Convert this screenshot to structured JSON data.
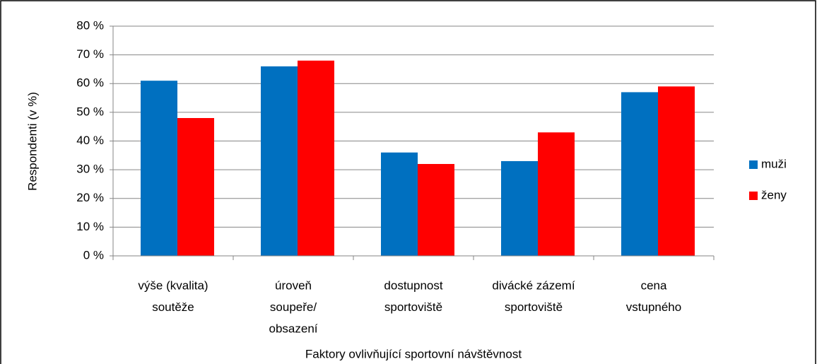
{
  "chart_data": {
    "type": "bar",
    "x_label": "Faktory ovlivňující sportovní návštěvnost",
    "y_label": "Respondenti (v %)",
    "categories": [
      [
        "výše (kvalita)",
        "soutěže"
      ],
      [
        "úroveň",
        "soupeře/",
        "obsazení"
      ],
      [
        "dostupnost",
        "sportoviště"
      ],
      [
        "divácké zázemí",
        "sportoviště"
      ],
      [
        "cena",
        "vstupného"
      ]
    ],
    "series": [
      {
        "name": "muži",
        "color": "#0070c0",
        "values": [
          61,
          66,
          36,
          33,
          57
        ]
      },
      {
        "name": "ženy",
        "color": "#ff0000",
        "values": [
          48,
          68,
          32,
          43,
          59
        ]
      }
    ],
    "ylim": [
      0,
      80
    ],
    "yticks": [
      {
        "value": 0,
        "label": "0 %"
      },
      {
        "value": 10,
        "label": "10 %"
      },
      {
        "value": 20,
        "label": "20 %"
      },
      {
        "value": 30,
        "label": "30 %"
      },
      {
        "value": 40,
        "label": "40 %"
      },
      {
        "value": 50,
        "label": "50 %"
      },
      {
        "value": 60,
        "label": "60 %"
      },
      {
        "value": 70,
        "label": "70 %"
      },
      {
        "value": 80,
        "label": "80 %"
      }
    ],
    "grid": true,
    "legend": "right"
  }
}
